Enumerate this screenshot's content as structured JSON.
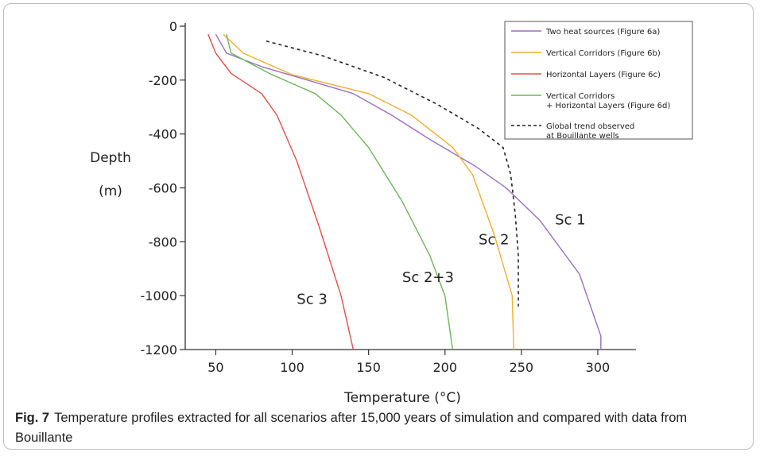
{
  "caption": {
    "label": "Fig. 7",
    "text": "Temperature profiles extracted for all scenarios after 15,000 years of simulation and compared with data from Bouillante"
  },
  "chart_data": {
    "type": "line",
    "title": "",
    "xlabel": "Temperature (°C)",
    "ylabel_line1": "Depth",
    "ylabel_line2": "(m)",
    "xlim": [
      30,
      325
    ],
    "ylim": [
      -1200,
      0
    ],
    "x_ticks": [
      50,
      100,
      150,
      200,
      250,
      300
    ],
    "y_ticks": [
      0,
      -200,
      -400,
      -600,
      -800,
      -1000,
      -1200
    ],
    "grid": false,
    "legend_position": "top-right",
    "series": [
      {
        "name": "Two heat sources (Figure 6a)",
        "color": "#9b6fc3",
        "dash": "solid",
        "points": [
          [
            50,
            -30
          ],
          [
            57,
            -100
          ],
          [
            80,
            -150
          ],
          [
            110,
            -200
          ],
          [
            140,
            -250
          ],
          [
            165,
            -330
          ],
          [
            190,
            -420
          ],
          [
            220,
            -520
          ],
          [
            240,
            -600
          ],
          [
            262,
            -720
          ],
          [
            288,
            -920
          ],
          [
            302,
            -1150
          ],
          [
            302,
            -1200
          ]
        ]
      },
      {
        "name": "Vertical Corridors (Figure 6b)",
        "color": "#f0b030",
        "dash": "solid",
        "points": [
          [
            55,
            -30
          ],
          [
            68,
            -100
          ],
          [
            100,
            -180
          ],
          [
            150,
            -250
          ],
          [
            178,
            -330
          ],
          [
            205,
            -450
          ],
          [
            218,
            -550
          ],
          [
            232,
            -770
          ],
          [
            244,
            -1000
          ],
          [
            245,
            -1200
          ]
        ]
      },
      {
        "name": "Horizontal Layers (Figure 6c)",
        "color": "#e0504a",
        "dash": "solid",
        "points": [
          [
            45,
            -30
          ],
          [
            50,
            -100
          ],
          [
            60,
            -175
          ],
          [
            80,
            -250
          ],
          [
            90,
            -330
          ],
          [
            103,
            -500
          ],
          [
            118,
            -750
          ],
          [
            132,
            -1000
          ],
          [
            140,
            -1200
          ]
        ]
      },
      {
        "name": "Vertical Corridors\n+ Horizontal Layers (Figure 6d)",
        "color": "#6db55a",
        "dash": "solid",
        "points": [
          [
            57,
            -30
          ],
          [
            60,
            -100
          ],
          [
            85,
            -175
          ],
          [
            115,
            -250
          ],
          [
            132,
            -330
          ],
          [
            150,
            -450
          ],
          [
            172,
            -650
          ],
          [
            190,
            -850
          ],
          [
            200,
            -1000
          ],
          [
            205,
            -1200
          ]
        ]
      },
      {
        "name": "Global trend observed\nat Bouillante wells",
        "color": "#222222",
        "dash": "dashed",
        "points": [
          [
            83,
            -55
          ],
          [
            120,
            -110
          ],
          [
            160,
            -190
          ],
          [
            195,
            -290
          ],
          [
            222,
            -380
          ],
          [
            238,
            -450
          ],
          [
            243,
            -550
          ],
          [
            246,
            -700
          ],
          [
            248,
            -850
          ],
          [
            248,
            -1040
          ]
        ]
      }
    ],
    "annotations": [
      {
        "text": "Sc 1",
        "x": 272,
        "y": -735
      },
      {
        "text": "Sc 2",
        "x": 222,
        "y": -810
      },
      {
        "text": "Sc 2+3",
        "x": 172,
        "y": -950
      },
      {
        "text": "Sc 3",
        "x": 103,
        "y": -1030
      }
    ]
  }
}
